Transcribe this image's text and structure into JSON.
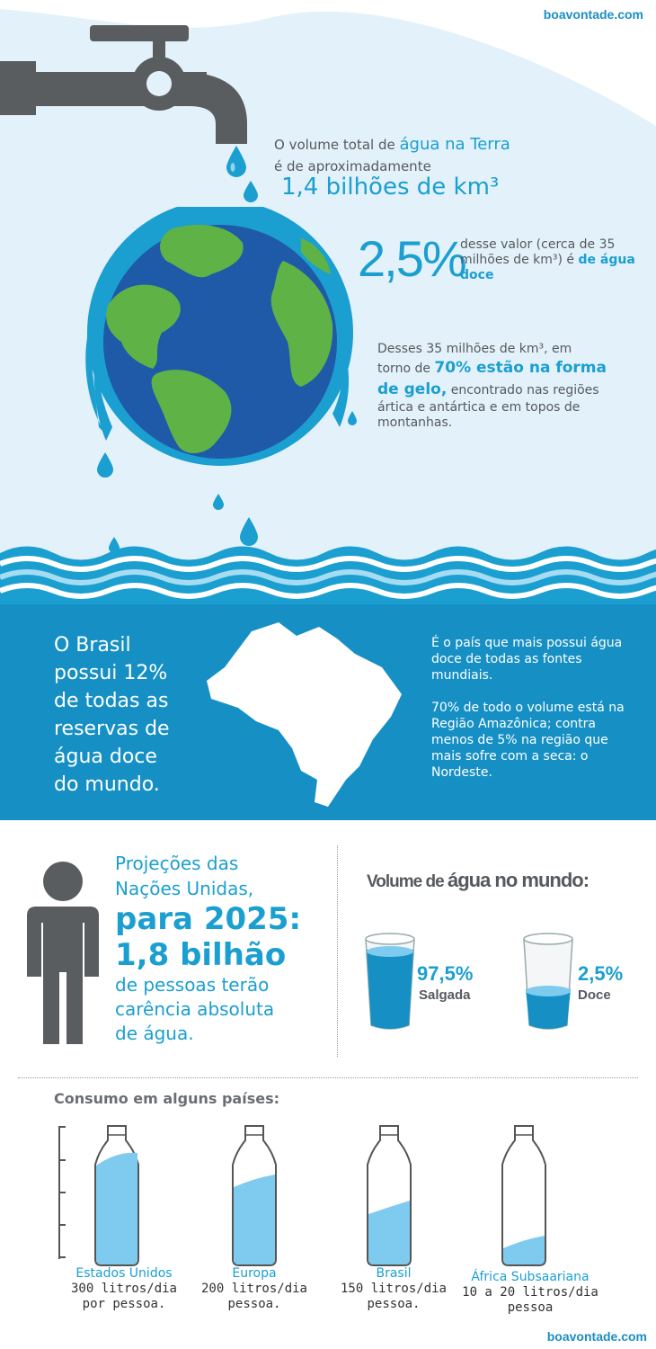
{
  "brand": {
    "top": "boavontade.com",
    "bottom": "boavontade.com"
  },
  "colors": {
    "accent": "#1a9fd0",
    "dark_blue": "#1690c4",
    "gray": "#555a5e",
    "earth_ocean": "#1f5aa8",
    "earth_land": "#5fb346"
  },
  "intro": {
    "line1_prefix": "O volume total de ",
    "line1_highlight": "água na Terra",
    "line2": "é de aproximadamente",
    "volume": "1,4 bilhões de km³"
  },
  "freshwater": {
    "percent": "2,5%",
    "text_prefix": "desse valor (cerca de 35 milhões de km³) é ",
    "text_highlight": "de água doce"
  },
  "ice": {
    "line1": "Desses 35 milhões de km³, em",
    "line2_prefix": "torno de ",
    "highlight": "70% estão na forma de gelo,",
    "suffix": " encontrado nas regiões ártica e antártica e em topos de montanhas."
  },
  "brazil": {
    "headline": [
      "O Brasil",
      "possui 12%",
      "de todas as",
      "reservas de",
      "água doce",
      "do mundo."
    ],
    "fact1": "É o país que mais possui água doce de todas as fontes mundiais.",
    "fact2": "70% de todo o volume está na Região Amazônica; contra menos de 5% na região que mais sofre com a seca: o Nordeste."
  },
  "projection": {
    "line1": "Projeções das",
    "line2": "Nações Unidas,",
    "line3": "para 2025:",
    "line4": "1,8 bilhão",
    "line5": "de pessoas terão",
    "line6": "carência absoluta",
    "line7": "de água."
  },
  "world_volume": {
    "title_prefix": "Volume de ",
    "title_highlight": "água",
    "title_suffix": " no mundo:",
    "glasses": [
      {
        "percent": "97,5%",
        "label": "Salgada",
        "fill": 0.82
      },
      {
        "percent": "2,5%",
        "label": "Doce",
        "fill": 0.35
      }
    ]
  },
  "consumption": {
    "title": "Consumo em alguns países:",
    "bottles": [
      {
        "country": "Estados Unidos",
        "amount": "300 litros/dia",
        "unit": "por pessoa.",
        "fill": 0.95
      },
      {
        "country": "Europa",
        "amount": "200 litros/dia",
        "unit": "pessoa.",
        "fill": 0.73
      },
      {
        "country": "Brasil",
        "amount": "150 litros/dia",
        "unit": "pessoa.",
        "fill": 0.49
      },
      {
        "country": "África Subsaariana",
        "amount": "10 a 20 litros/dia",
        "unit": "pessoa",
        "fill": 0.18
      }
    ]
  }
}
